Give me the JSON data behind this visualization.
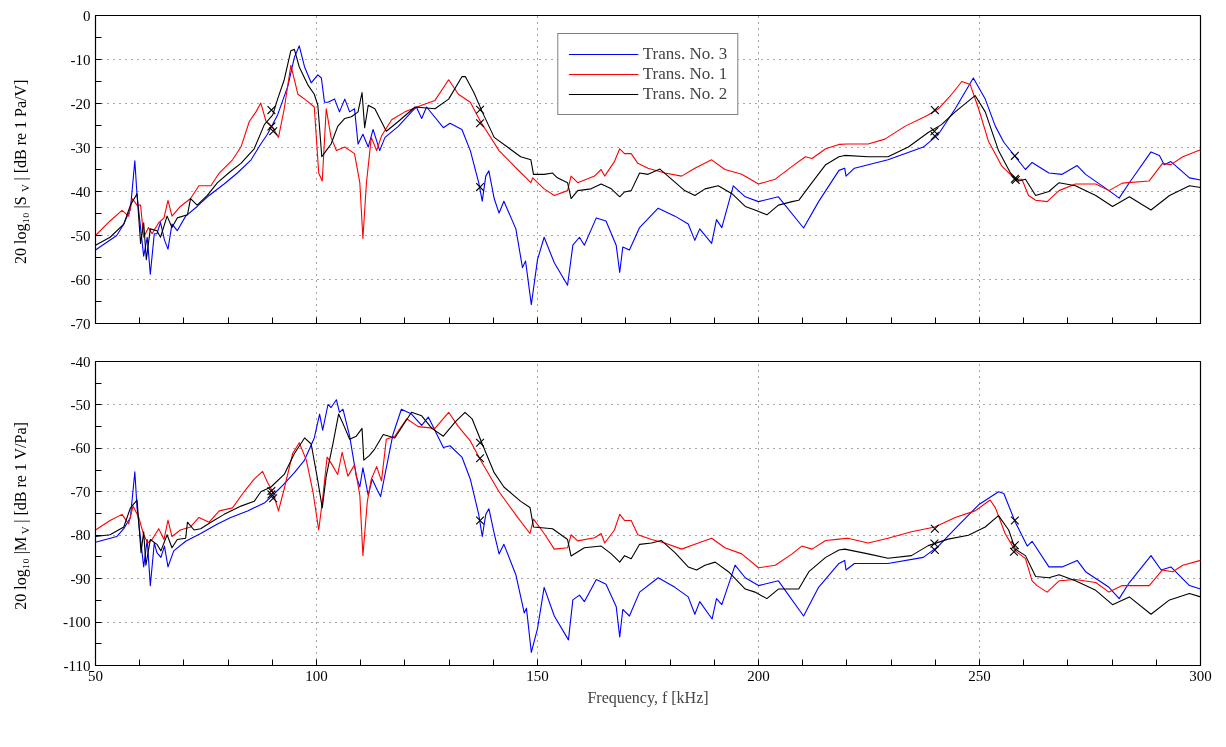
{
  "chart_data": [
    {
      "type": "line",
      "ylabel": "20 log₁₀ |S$_{V}$| [dB re 1 Pa/V]",
      "xlim": [
        50,
        300
      ],
      "ylim": [
        -70,
        0
      ],
      "xticks": [
        50,
        {
          "value": 60,
          "label": null
        },
        {
          "value": 70,
          "label": null
        },
        {
          "value": 80,
          "label": null
        },
        {
          "value": 90,
          "label": null
        },
        100,
        {
          "value": 110,
          "label": null
        },
        {
          "value": 120,
          "label": null
        },
        {
          "value": 130,
          "label": null
        },
        {
          "value": 140,
          "label": null
        },
        150,
        {
          "value": 160,
          "label": null
        },
        {
          "value": 170,
          "label": null
        },
        {
          "value": 180,
          "label": null
        },
        {
          "value": 190,
          "label": null
        },
        200,
        {
          "value": 210,
          "label": null
        },
        {
          "value": 220,
          "label": null
        },
        {
          "value": 230,
          "label": null
        },
        {
          "value": 240,
          "label": null
        },
        250,
        {
          "value": 260,
          "label": null
        },
        {
          "value": 270,
          "label": null
        },
        {
          "value": 280,
          "label": null
        },
        {
          "value": 290,
          "label": null
        },
        300
      ],
      "yticks": [
        -70,
        {
          "value": -65,
          "label": null
        },
        -60,
        {
          "value": -55,
          "label": null
        },
        -50,
        {
          "value": -45,
          "label": null
        },
        -40,
        {
          "value": -35,
          "label": null
        },
        -30,
        {
          "value": -25,
          "label": null
        },
        -20,
        {
          "value": -15,
          "label": null
        },
        -10,
        {
          "value": -5,
          "label": null
        },
        0
      ],
      "tick_labels": "y",
      "grid": true,
      "legend": "top",
      "series": [
        {
          "name": "Trans. No. 3",
          "color": "#0000ff",
          "x": [
            50,
            54.8,
            56.4,
            57.9,
            58.9,
            59.4,
            60.9,
            61.7,
            62.4,
            63.3,
            63.9,
            64.7,
            65.6,
            66.4,
            67.3,
            68.5,
            70.4,
            73,
            75.7,
            79.1,
            82.1,
            85.2,
            87.4,
            88.9,
            91.2,
            93.5,
            95,
            96.1,
            97.3,
            98.8,
            100.3,
            101.1,
            101.8,
            102.6,
            104.1,
            105.2,
            106.4,
            107.5,
            108.6,
            109.4,
            110.5,
            111.7,
            112.8,
            114.3,
            115.5,
            118.5,
            121.5,
            122.6,
            123.8,
            124.9,
            128.7,
            130.2,
            132.9,
            134.8,
            136.7,
            137.5,
            138.3,
            139,
            140.2,
            141.3,
            142.4,
            145.1,
            146.6,
            147.3,
            148.6,
            150,
            151.5,
            153.8,
            156.8,
            158,
            159.5,
            160.6,
            163.3,
            165.5,
            167.8,
            168.6,
            169.3,
            170.8,
            173.1,
            177.3,
            181.1,
            184.1,
            185.6,
            186.7,
            189.4,
            190.5,
            191.7,
            194.3,
            197,
            200,
            204.5,
            210.2,
            213.6,
            218.2,
            219.5,
            219.8,
            221.7,
            229.3,
            237.3,
            240.7,
            244.5,
            248.6,
            251.3,
            253.6,
            255.5,
            258.1,
            260.4,
            261.9,
            265.7,
            268.7,
            272.1,
            274,
            279.3,
            281.6,
            283.9,
            288.8,
            290.7,
            291.8,
            293.3,
            297.5,
            300
          ],
          "values": [
            -53.3,
            -50,
            -47.4,
            -44,
            -33,
            -40.9,
            -54.7,
            -50.4,
            -58.8,
            -49.6,
            -49.6,
            -47,
            -51,
            -53.1,
            -47.4,
            -48.9,
            -45.6,
            -43.4,
            -40.9,
            -38.3,
            -35.8,
            -32.8,
            -29.2,
            -27,
            -22.6,
            -16.1,
            -9.5,
            -6.9,
            -11.7,
            -15.3,
            -13.5,
            -14.2,
            -19.7,
            -19.7,
            -19,
            -21.9,
            -19,
            -21.9,
            -21.2,
            -29.2,
            -27,
            -29.9,
            -25.9,
            -30.7,
            -27.7,
            -25.2,
            -21.9,
            -20.8,
            -23.4,
            -20.8,
            -25.5,
            -24.5,
            -25.9,
            -30.7,
            -38,
            -42.2,
            -36.5,
            -35.3,
            -41.6,
            -44.9,
            -42.2,
            -48.5,
            -57.3,
            -55.8,
            -65.7,
            -55.5,
            -50.4,
            -56.2,
            -61.3,
            -52.2,
            -50.4,
            -52.2,
            -46,
            -46.7,
            -52.2,
            -58.4,
            -52.6,
            -53.3,
            -48.2,
            -43.8,
            -45.6,
            -47.4,
            -51.1,
            -48.5,
            -51.8,
            -46.4,
            -48.2,
            -38.7,
            -41.2,
            -42.3,
            -41.2,
            -48.3,
            -42.3,
            -35.2,
            -34.7,
            -36.5,
            -34.7,
            -32.8,
            -29.9,
            -27,
            -21.2,
            -14.2,
            -19,
            -25.2,
            -28.8,
            -32.1,
            -35,
            -33.4,
            -35.8,
            -36.1,
            -34.1,
            -36.1,
            -39.8,
            -41.5,
            -38,
            -31,
            -31.8,
            -33.9,
            -33.2,
            -36.9,
            -37.4
          ]
        },
        {
          "name": "Trans. No. 1",
          "color": "#ff0000",
          "x": [
            50,
            53.3,
            56,
            57.5,
            58.3,
            59.4,
            60.2,
            60.9,
            62,
            62.8,
            64.3,
            65.5,
            66.4,
            67.3,
            69.2,
            71.5,
            73.4,
            76.1,
            78,
            81,
            82.9,
            84.8,
            86.3,
            87.4,
            88.6,
            90.1,
            91.4,
            92.7,
            94.2,
            95.8,
            97.7,
            99.5,
            100.5,
            101.3,
            102.2,
            103.3,
            104.5,
            106.4,
            108.6,
            109.8,
            110.5,
            111.3,
            112.4,
            113.6,
            114.7,
            117,
            120,
            123.8,
            126.8,
            129.9,
            132.1,
            134.8,
            137.1,
            141.3,
            145.5,
            148.5,
            148.9,
            151.5,
            153.8,
            156.8,
            157.6,
            159.1,
            162.9,
            164.4,
            165.2,
            167.4,
            168.6,
            169.7,
            171.2,
            172.7,
            175,
            178.8,
            182.6,
            185.6,
            189.4,
            192.4,
            196.2,
            200,
            203.8,
            207.6,
            210.6,
            212.1,
            215.2,
            218.2,
            220.2,
            224.8,
            228.6,
            233.1,
            238.4,
            240.7,
            243.7,
            246,
            247.9,
            249.8,
            252,
            255.1,
            258.1,
            259.6,
            261.1,
            262.7,
            265.3,
            268,
            271.7,
            276.3,
            279.3,
            282.3,
            288.4,
            291.4,
            293.3,
            296,
            300
          ],
          "values": [
            -50,
            -46.7,
            -44.3,
            -45.6,
            -41.6,
            -43.1,
            -43.1,
            -50.4,
            -48.2,
            -49.6,
            -47.1,
            -46,
            -42,
            -45.6,
            -43.4,
            -41.6,
            -38.7,
            -38.7,
            -35.8,
            -32.8,
            -29.9,
            -24.1,
            -21.9,
            -19.9,
            -24.1,
            -25.5,
            -27.7,
            -21.2,
            -11.3,
            -17.9,
            -19.3,
            -20.8,
            -35.8,
            -37.6,
            -21.2,
            -27.7,
            -30.7,
            -29.9,
            -31.4,
            -38,
            -50.7,
            -38,
            -27.7,
            -30.7,
            -27.4,
            -23.7,
            -21.9,
            -20.4,
            -19.3,
            -14.6,
            -17.9,
            -19.7,
            -24.1,
            -30.7,
            -35,
            -38,
            -36.9,
            -39.4,
            -40.9,
            -39.8,
            -36.5,
            -38,
            -36.5,
            -35,
            -36.5,
            -33.2,
            -30.3,
            -31.4,
            -31.4,
            -33.6,
            -34.7,
            -35.8,
            -36.5,
            -34.7,
            -32.8,
            -35,
            -36.1,
            -38.3,
            -37.2,
            -34.3,
            -32.1,
            -32.5,
            -30.3,
            -29.3,
            -29.2,
            -29.2,
            -28.1,
            -25.2,
            -22.6,
            -21.2,
            -17.9,
            -15,
            -15.7,
            -21.2,
            -28.5,
            -34.3,
            -37.2,
            -37.2,
            -40.9,
            -42,
            -42.3,
            -39.8,
            -38.3,
            -38.3,
            -39.8,
            -38.1,
            -37.6,
            -33.6,
            -33.9,
            -32.1,
            -30.5
          ]
        },
        {
          "name": "Trans. No. 2",
          "color": "#000000",
          "x": [
            50,
            53.3,
            56.4,
            57.9,
            59.4,
            60.2,
            60.9,
            61.5,
            62.4,
            63.9,
            64.7,
            66.2,
            67.3,
            68.5,
            70.8,
            71.5,
            73,
            75.3,
            77.6,
            80.6,
            82.9,
            85.9,
            88.2,
            90.1,
            91.2,
            92.7,
            94.2,
            95,
            96.1,
            98,
            99.5,
            100.3,
            101.2,
            102.2,
            103.3,
            104.8,
            106.4,
            107.9,
            109.4,
            110.3,
            110.9,
            111.7,
            113.2,
            115.8,
            118.5,
            122.3,
            126.8,
            129.9,
            132.9,
            133.7,
            135.6,
            137.5,
            140.2,
            143.2,
            146.2,
            148.5,
            149.1,
            151.5,
            153.4,
            154.5,
            156.8,
            157.6,
            159.1,
            162.1,
            164.4,
            166.7,
            168.6,
            169.7,
            171.2,
            173.1,
            175,
            177.7,
            180.3,
            183.3,
            185.6,
            187.9,
            190.9,
            194,
            197,
            199.2,
            201.9,
            204.5,
            207.6,
            209.1,
            212.1,
            215.2,
            218.2,
            219.5,
            224.8,
            229.3,
            233.9,
            238.4,
            241.4,
            244.5,
            249,
            251.3,
            254.3,
            257,
            258.9,
            260.4,
            262.7,
            265.7,
            268,
            271.7,
            276.3,
            280.1,
            283.9,
            288.8,
            293,
            297.5,
            300
          ],
          "values": [
            -52.2,
            -50.4,
            -47.4,
            -43.1,
            -40.5,
            -51.8,
            -47.1,
            -55.5,
            -48.5,
            -48.9,
            -50.4,
            -45.6,
            -48.2,
            -46,
            -45.3,
            -41.6,
            -43.1,
            -40.9,
            -38,
            -35.4,
            -33.6,
            -30.3,
            -24.8,
            -22.6,
            -19,
            -14.6,
            -8,
            -7.7,
            -11.7,
            -15.7,
            -17.9,
            -20.4,
            -32.1,
            -30.7,
            -29.2,
            -25.2,
            -23.4,
            -23,
            -21.9,
            -17.5,
            -25.5,
            -20.4,
            -21.2,
            -26.3,
            -24.1,
            -20.8,
            -21.2,
            -19,
            -13.9,
            -13.9,
            -17.5,
            -21.9,
            -27.7,
            -29.9,
            -32.1,
            -32.8,
            -36.1,
            -36.1,
            -35.8,
            -36.9,
            -38,
            -41.6,
            -39.8,
            -39.4,
            -38.3,
            -39.4,
            -41.2,
            -40.1,
            -39.8,
            -35.8,
            -36.1,
            -34.9,
            -37.2,
            -39.8,
            -40.9,
            -39.4,
            -38.7,
            -40.5,
            -43.4,
            -44.2,
            -45.3,
            -43.1,
            -42.3,
            -42,
            -38,
            -33.9,
            -32.1,
            -31.8,
            -32.1,
            -32.1,
            -29.9,
            -26.6,
            -24.8,
            -21.9,
            -18.2,
            -21.9,
            -30.7,
            -35.8,
            -37.6,
            -37.2,
            -40.9,
            -40,
            -38,
            -38.7,
            -40.9,
            -43.4,
            -41.2,
            -44.2,
            -40.9,
            -38.7,
            -39.1
          ]
        },
        {
          "type": "scatter",
          "marker": "cross",
          "color": "#000000",
          "x": [
            89.8,
            89.8,
            90.2,
            137,
            137,
            137,
            239.9,
            239.8,
            239.9,
            258,
            258,
            258.2
          ],
          "values": [
            -21.5,
            -25.2,
            -26.3,
            -21.4,
            -24.5,
            -39,
            -21.5,
            -26.3,
            -27.4,
            -31.9,
            -37.1,
            -37.4
          ]
        }
      ]
    },
    {
      "type": "line",
      "xlabel": "Frequency, f [kHz]",
      "ylabel": "20 log₁₀ |M$_{V}$| [dB re 1 V/Pa]",
      "xlim": [
        50,
        300
      ],
      "ylim": [
        -110,
        -40
      ],
      "xticks": [
        50,
        {
          "value": 60,
          "label": null
        },
        {
          "value": 70,
          "label": null
        },
        {
          "value": 80,
          "label": null
        },
        {
          "value": 90,
          "label": null
        },
        100,
        {
          "value": 110,
          "label": null
        },
        {
          "value": 120,
          "label": null
        },
        {
          "value": 130,
          "label": null
        },
        {
          "value": 140,
          "label": null
        },
        150,
        {
          "value": 160,
          "label": null
        },
        {
          "value": 170,
          "label": null
        },
        {
          "value": 180,
          "label": null
        },
        {
          "value": 190,
          "label": null
        },
        200,
        {
          "value": 210,
          "label": null
        },
        {
          "value": 220,
          "label": null
        },
        {
          "value": 230,
          "label": null
        },
        {
          "value": 240,
          "label": null
        },
        250,
        {
          "value": 260,
          "label": null
        },
        {
          "value": 270,
          "label": null
        },
        {
          "value": 280,
          "label": null
        },
        {
          "value": 290,
          "label": null
        },
        300
      ],
      "yticks": [
        -110,
        {
          "value": -105,
          "label": null
        },
        -100,
        {
          "value": -95,
          "label": null
        },
        -90,
        {
          "value": -85,
          "label": null
        },
        -80,
        {
          "value": -75,
          "label": null
        },
        -70,
        {
          "value": -65,
          "label": null
        },
        -60,
        {
          "value": -55,
          "label": null
        },
        -50,
        {
          "value": -45,
          "label": null
        },
        -40
      ],
      "grid": true,
      "series": [
        {
          "color": "#0000ff",
          "x": [
            50,
            54.8,
            56.4,
            57.9,
            58.9,
            59.4,
            60.9,
            61.7,
            62.4,
            63.3,
            63.9,
            64.8,
            65.6,
            66.4,
            67.7,
            70.4,
            73.8,
            77.6,
            80.6,
            84.4,
            88.2,
            90.1,
            92.3,
            95,
            97.3,
            99.5,
            100.7,
            101.4,
            102.6,
            103.3,
            104.5,
            105.2,
            106,
            107.5,
            109,
            109.8,
            110.5,
            111.7,
            112.6,
            113.8,
            114.5,
            115.5,
            117.3,
            119.2,
            121.5,
            123.8,
            125.3,
            128.7,
            130.2,
            132.9,
            134.8,
            136.7,
            137.5,
            138.3,
            139,
            140.2,
            141.3,
            142.4,
            145.1,
            147,
            147.5,
            148.6,
            150,
            151.5,
            153.8,
            157,
            158,
            159.5,
            160.6,
            163.3,
            165.5,
            167.8,
            168.6,
            169.3,
            170.8,
            173.1,
            177.3,
            181.1,
            184.1,
            185.6,
            186.7,
            189.5,
            190.5,
            191.7,
            194.7,
            197,
            200,
            204.5,
            210.2,
            213.6,
            218.2,
            219.5,
            219.8,
            221.7,
            229.3,
            237.3,
            240.7,
            244.5,
            249.8,
            254.3,
            255.5,
            258.1,
            260.8,
            261.9,
            265.7,
            268.7,
            272.1,
            274,
            279.3,
            281.6,
            283.9,
            288.8,
            291.1,
            293.3,
            297.5,
            300
          ],
          "values": [
            -81.6,
            -80.3,
            -78.5,
            -75.9,
            -65.4,
            -73.7,
            -87.3,
            -81,
            -91.6,
            -81.8,
            -84,
            -85.1,
            -82.5,
            -87.3,
            -83.6,
            -81.4,
            -79.6,
            -77.4,
            -75.9,
            -74.4,
            -72.6,
            -70.8,
            -68.6,
            -65.6,
            -62.7,
            -57.6,
            -52.1,
            -55.8,
            -49.9,
            -50.6,
            -48.8,
            -51.7,
            -51,
            -57.2,
            -66.4,
            -68.9,
            -64.5,
            -70.8,
            -67.1,
            -69.7,
            -71.1,
            -66,
            -56.8,
            -51,
            -52.1,
            -54.7,
            -52.8,
            -59.8,
            -59.4,
            -62,
            -67.1,
            -75.2,
            -80.3,
            -75.2,
            -73.9,
            -79.6,
            -84.3,
            -82.1,
            -89.1,
            -97.9,
            -96.8,
            -107,
            -101.5,
            -92,
            -98.6,
            -104.1,
            -94.9,
            -93.8,
            -95.3,
            -90.2,
            -91.3,
            -96.4,
            -103.4,
            -97.1,
            -98.6,
            -93.1,
            -89.8,
            -92,
            -94.2,
            -98.2,
            -95.3,
            -99.3,
            -94.6,
            -96,
            -86.9,
            -89.8,
            -91.6,
            -90.5,
            -98.6,
            -92,
            -86.5,
            -85.8,
            -88,
            -86.5,
            -86.5,
            -85.1,
            -82.5,
            -78.5,
            -73,
            -70,
            -70.4,
            -77,
            -82.5,
            -81.4,
            -87.3,
            -87.3,
            -85.8,
            -88.4,
            -92,
            -94.6,
            -90.9,
            -84.7,
            -88,
            -87.3,
            -91.6,
            -92.4
          ]
        },
        {
          "color": "#ff0000",
          "x": [
            50,
            53.3,
            56,
            57.5,
            58.5,
            59.8,
            60.8,
            61.8,
            62.8,
            64.3,
            65.5,
            66.4,
            67.3,
            69.2,
            71.5,
            73.4,
            75.7,
            78,
            81,
            83.6,
            85.9,
            87.8,
            88.9,
            90.1,
            91.4,
            92.7,
            94.6,
            96.1,
            97.7,
            99.2,
            100.5,
            101.4,
            102.4,
            103.3,
            104.8,
            105.8,
            107.1,
            108.6,
            109.8,
            110.5,
            111.5,
            112.4,
            113.6,
            114.7,
            115.8,
            117.7,
            120.4,
            123,
            126.8,
            129.9,
            132.1,
            134.8,
            137.1,
            141.3,
            145.5,
            148.3,
            149.1,
            151.5,
            153.8,
            156.8,
            157.6,
            159.1,
            162.9,
            164.4,
            165.2,
            167.4,
            168.6,
            169.7,
            171.2,
            172.7,
            175.8,
            178.8,
            182.6,
            185.6,
            189.4,
            192.4,
            196.2,
            200,
            203.8,
            207.6,
            209.8,
            212.1,
            215.2,
            218.2,
            220.2,
            224.8,
            229.3,
            234.6,
            239.9,
            244.5,
            249,
            252.4,
            253.6,
            255.8,
            258.1,
            260.4,
            261.9,
            263,
            265.3,
            268,
            271.7,
            276.3,
            279.3,
            282.3,
            288.4,
            291.4,
            293.7,
            296,
            300
          ],
          "values": [
            -78.8,
            -76.6,
            -75.2,
            -77.4,
            -73.3,
            -75.9,
            -79.6,
            -81.8,
            -81,
            -78.5,
            -81,
            -76.5,
            -80.3,
            -78.8,
            -78.1,
            -75.9,
            -77,
            -74.4,
            -73.7,
            -70,
            -67.1,
            -65.3,
            -67.8,
            -70,
            -74.4,
            -69.3,
            -61.2,
            -58.7,
            -62.7,
            -70,
            -78.8,
            -71.5,
            -62,
            -63.4,
            -66,
            -60.9,
            -66.4,
            -63.8,
            -70.8,
            -84.7,
            -72.2,
            -67.1,
            -64.2,
            -67.5,
            -57.9,
            -57.2,
            -53.2,
            -55,
            -55.4,
            -51.7,
            -55,
            -58.3,
            -62.7,
            -70,
            -75.9,
            -79.6,
            -76.3,
            -79.6,
            -83.2,
            -82.9,
            -79.9,
            -81.3,
            -80.6,
            -79.6,
            -81.8,
            -78.8,
            -75.2,
            -76.6,
            -76.6,
            -79.9,
            -81,
            -81.8,
            -83.2,
            -82.1,
            -80.7,
            -82.9,
            -84.3,
            -87.5,
            -86.9,
            -84.3,
            -82.5,
            -83.2,
            -81.2,
            -80.9,
            -80.7,
            -81.8,
            -80.7,
            -79.2,
            -78.1,
            -75.9,
            -74.4,
            -71.9,
            -73.7,
            -79.6,
            -83.6,
            -85.4,
            -90.5,
            -91.6,
            -93.1,
            -90.5,
            -90.2,
            -90.9,
            -93.1,
            -91.6,
            -91.6,
            -88,
            -88.4,
            -86.9,
            -85.8
          ]
        },
        {
          "color": "#000000",
          "x": [
            50,
            53.3,
            56.4,
            57.9,
            59.4,
            60.3,
            60.9,
            61.4,
            62.4,
            63.9,
            64.8,
            66.2,
            67.3,
            68.5,
            70.4,
            70.8,
            72.3,
            73.8,
            76.1,
            79.1,
            82.9,
            85.9,
            87.4,
            89.7,
            92.7,
            95,
            97.3,
            98.8,
            100.3,
            101.3,
            102.2,
            103.7,
            105,
            106,
            107.5,
            109,
            110.3,
            110.7,
            112,
            113.2,
            115.1,
            117.7,
            121.5,
            123.8,
            126.1,
            128.7,
            131.4,
            133.6,
            135.2,
            137.5,
            140.2,
            142.4,
            146.2,
            148.3,
            149.1,
            153.4,
            156.8,
            157.6,
            160.6,
            164.4,
            166.7,
            168.6,
            169.7,
            171.2,
            173.1,
            175.8,
            178,
            181.1,
            184.1,
            186,
            187.9,
            190.2,
            193.2,
            197,
            199.2,
            201.9,
            204.5,
            209.1,
            211.4,
            215.2,
            218.2,
            219.5,
            224.8,
            229.3,
            234.6,
            238.4,
            242.9,
            247.5,
            251.3,
            254.3,
            256.6,
            258.1,
            260.4,
            262.7,
            265.7,
            268,
            271.7,
            276.3,
            280.1,
            283.9,
            288.8,
            293,
            297.5,
            300
          ],
          "values": [
            -80.3,
            -79.9,
            -78.1,
            -73.7,
            -71.9,
            -84,
            -79.2,
            -86.9,
            -81,
            -82.1,
            -83.6,
            -79.9,
            -82.9,
            -81,
            -80.7,
            -77,
            -78.8,
            -78.5,
            -77,
            -75.2,
            -73.3,
            -72.2,
            -70,
            -68.9,
            -66,
            -61.2,
            -57.6,
            -59,
            -67.5,
            -73.7,
            -66.4,
            -59,
            -52.1,
            -54.3,
            -57.9,
            -57.2,
            -55.4,
            -62.7,
            -61.6,
            -60.1,
            -56.8,
            -57.6,
            -51.7,
            -52.5,
            -55.4,
            -57.2,
            -53.9,
            -51.7,
            -53.2,
            -59,
            -65.6,
            -68.9,
            -72.2,
            -73.6,
            -78.1,
            -78.5,
            -81,
            -84.8,
            -82.9,
            -82.5,
            -84.3,
            -86.2,
            -84.7,
            -85.4,
            -82.1,
            -81.8,
            -81.2,
            -84,
            -87.3,
            -88,
            -86.9,
            -86.2,
            -88.4,
            -92.4,
            -93.1,
            -94.6,
            -92.4,
            -92.4,
            -88.4,
            -85.1,
            -83.4,
            -83.2,
            -84.3,
            -85.3,
            -84.7,
            -82.4,
            -80.9,
            -80,
            -78.1,
            -75.5,
            -78.8,
            -83.2,
            -84.7,
            -89.5,
            -89.8,
            -89.1,
            -90.5,
            -92.7,
            -96,
            -94.2,
            -98.2,
            -94.9,
            -93.4,
            -94.2
          ]
        },
        {
          "type": "scatter",
          "marker": "cross",
          "color": "#000000",
          "x": [
            89.8,
            89.8,
            90.2,
            137,
            137,
            137,
            239.9,
            239.8,
            239.9,
            258,
            258,
            257.8
          ],
          "values": [
            -69.8,
            -70.6,
            -71.5,
            -58.7,
            -62.3,
            -76.6,
            -78.5,
            -81.9,
            -83.4,
            -76.6,
            -82.3,
            -83.8
          ]
        }
      ]
    }
  ]
}
